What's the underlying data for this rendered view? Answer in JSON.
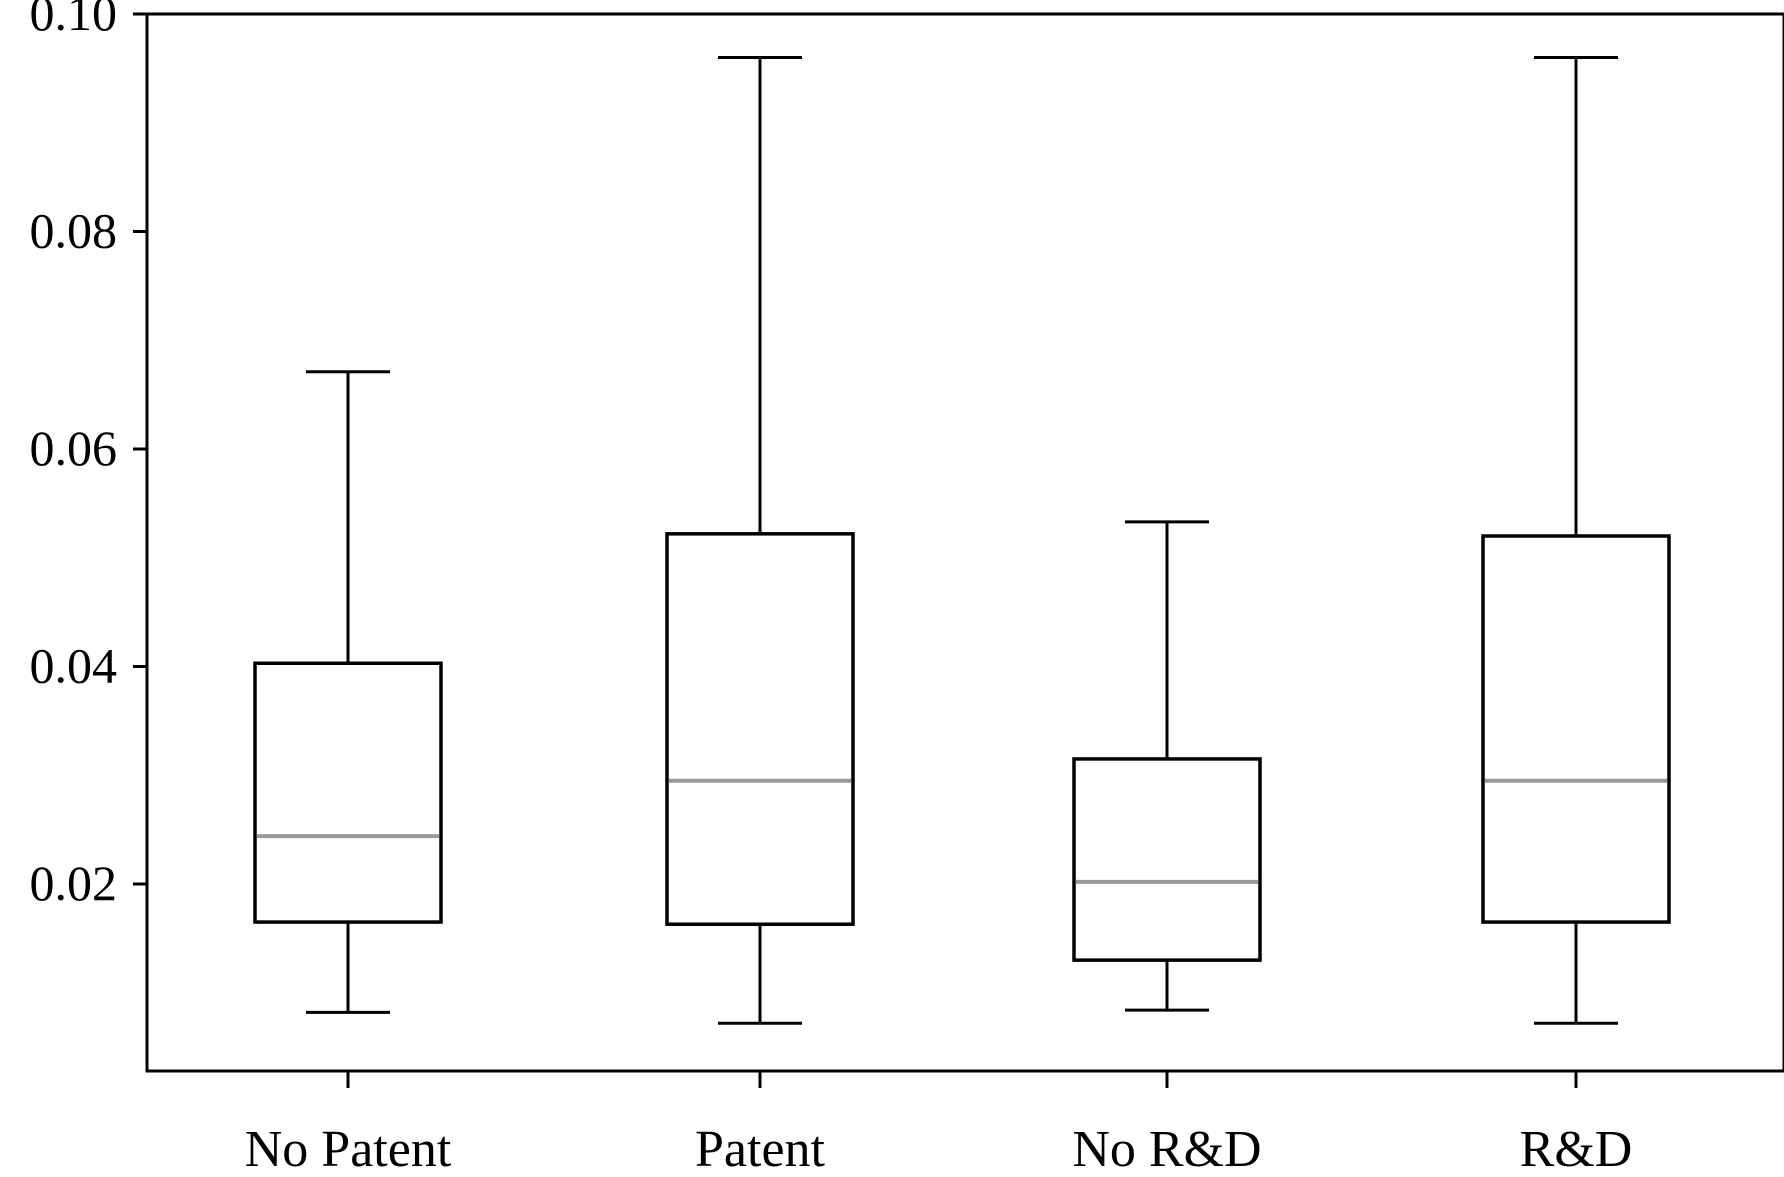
{
  "chart_data": {
    "type": "box",
    "title": "",
    "xlabel": "",
    "ylabel": "",
    "ylim": [
      0.0,
      0.1
    ],
    "yticks": [
      0.02,
      0.04,
      0.06,
      0.08,
      0.1
    ],
    "ytick_labels": [
      "0.02",
      "0.04",
      "0.06",
      "0.08",
      "0.10"
    ],
    "categories": [
      "No Patent",
      "Patent",
      "No R&D",
      "R&D"
    ],
    "boxes": [
      {
        "category": "No Patent",
        "min": 0.0082,
        "q1": 0.0165,
        "median": 0.0244,
        "q3": 0.0403,
        "max": 0.0671
      },
      {
        "category": "Patent",
        "min": 0.0072,
        "q1": 0.0163,
        "median": 0.0295,
        "q3": 0.0522,
        "max": 0.096
      },
      {
        "category": "No R&D",
        "min": 0.0084,
        "q1": 0.013,
        "median": 0.0202,
        "q3": 0.0315,
        "max": 0.0533
      },
      {
        "category": "R&D",
        "min": 0.0072,
        "q1": 0.0165,
        "median": 0.0295,
        "q3": 0.052,
        "max": 0.096
      }
    ],
    "grid": false,
    "colors": {
      "box": "#000000",
      "median": "#999999"
    }
  }
}
